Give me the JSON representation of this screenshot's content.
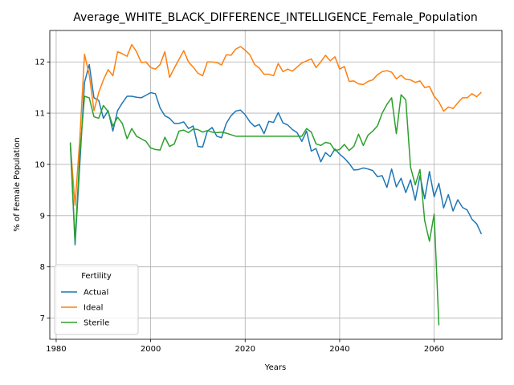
{
  "chart_data": {
    "type": "line",
    "title": "Average_WHITE_BLACK_DIFFERENCE_INTELLIGENCE_Female_Population",
    "xlabel": "Years",
    "ylabel": "% of Female Population",
    "legend_title": "Fertility",
    "legend": "lower left",
    "grid": true,
    "xlim": [
      1978.65,
      2074.35
    ],
    "xticks": [
      1980,
      2000,
      2020,
      2040,
      2060
    ],
    "ylim": [
      6.586,
      12.614
    ],
    "yticks": [
      7,
      8,
      9,
      10,
      11,
      12
    ],
    "x": [
      1983,
      1984,
      1985,
      1986,
      1987,
      1988,
      1989,
      1990,
      1991,
      1992,
      1993,
      1994,
      1995,
      1996,
      1997,
      1998,
      1999,
      2000,
      2001,
      2002,
      2003,
      2004,
      2005,
      2006,
      2007,
      2008,
      2009,
      2010,
      2011,
      2012,
      2013,
      2014,
      2015,
      2016,
      2017,
      2018,
      2019,
      2020,
      2021,
      2022,
      2023,
      2024,
      2025,
      2026,
      2027,
      2028,
      2029,
      2030,
      2031,
      2032,
      2033,
      2034,
      2035,
      2036,
      2037,
      2038,
      2039,
      2040,
      2041,
      2042,
      2043,
      2044,
      2045,
      2046,
      2047,
      2048,
      2049,
      2050,
      2051,
      2052,
      2053,
      2054,
      2055,
      2056,
      2057,
      2058,
      2059,
      2060,
      2061,
      2062,
      2063,
      2064,
      2065,
      2066,
      2067,
      2068,
      2069,
      2070
    ],
    "series": [
      {
        "name": "Actual",
        "color": "#1f77b4",
        "values": [
          10.4,
          8.43,
          10.0,
          11.6,
          11.95,
          11.3,
          11.25,
          10.9,
          11.05,
          10.65,
          11.05,
          11.2,
          11.33,
          11.33,
          11.31,
          11.3,
          11.35,
          11.4,
          11.38,
          11.1,
          10.95,
          10.9,
          10.8,
          10.8,
          10.83,
          10.7,
          10.75,
          10.35,
          10.34,
          10.65,
          10.72,
          10.55,
          10.52,
          10.8,
          10.95,
          11.04,
          11.06,
          10.97,
          10.83,
          10.74,
          10.78,
          10.6,
          10.84,
          10.82,
          11.01,
          10.81,
          10.77,
          10.68,
          10.62,
          10.45,
          10.65,
          10.26,
          10.31,
          10.05,
          10.23,
          10.15,
          10.3,
          10.2,
          10.12,
          10.02,
          9.89,
          9.9,
          9.93,
          9.91,
          9.88,
          9.76,
          9.78,
          9.55,
          9.91,
          9.56,
          9.73,
          9.45,
          9.7,
          9.3,
          9.78,
          9.33,
          9.86,
          9.37,
          9.63,
          9.15,
          9.41,
          9.09,
          9.31,
          9.16,
          9.11,
          8.93,
          8.84,
          8.64
        ]
      },
      {
        "name": "Ideal",
        "color": "#ff7f0e",
        "values": [
          10.4,
          9.2,
          10.5,
          12.15,
          11.75,
          11.05,
          11.4,
          11.65,
          11.85,
          11.73,
          12.2,
          12.16,
          12.11,
          12.34,
          12.2,
          11.99,
          12.0,
          11.89,
          11.86,
          11.95,
          12.2,
          11.7,
          11.88,
          12.05,
          12.22,
          12.0,
          11.9,
          11.78,
          11.73,
          12.0,
          12.0,
          11.99,
          11.94,
          12.14,
          12.13,
          12.25,
          12.3,
          12.23,
          12.14,
          11.95,
          11.88,
          11.76,
          11.76,
          11.73,
          11.97,
          11.81,
          11.86,
          11.82,
          11.9,
          11.98,
          12.02,
          12.06,
          11.89,
          12.0,
          12.13,
          12.02,
          12.1,
          11.86,
          11.91,
          11.62,
          11.63,
          11.57,
          11.56,
          11.62,
          11.65,
          11.75,
          11.81,
          11.83,
          11.8,
          11.67,
          11.74,
          11.66,
          11.65,
          11.6,
          11.63,
          11.5,
          11.52,
          11.33,
          11.22,
          11.04,
          11.12,
          11.09,
          11.2,
          11.3,
          11.3,
          11.38,
          11.32,
          11.41
        ]
      },
      {
        "name": "Sterile",
        "color": "#2ca02c",
        "values": [
          10.43,
          8.5,
          10.2,
          11.33,
          11.3,
          10.93,
          10.9,
          11.15,
          11.03,
          10.75,
          10.92,
          10.8,
          10.5,
          10.7,
          10.55,
          10.5,
          10.45,
          10.32,
          10.29,
          10.28,
          10.53,
          10.35,
          10.4,
          10.65,
          10.67,
          10.62,
          10.69,
          10.68,
          10.63,
          10.66,
          10.63,
          10.62,
          10.63,
          10.61,
          10.58,
          10.55,
          10.55,
          10.55,
          10.55,
          10.55,
          10.55,
          10.55,
          10.55,
          10.55,
          10.55,
          10.55,
          10.55,
          10.55,
          10.55,
          10.55,
          10.7,
          10.63,
          10.4,
          10.37,
          10.43,
          10.41,
          10.27,
          10.29,
          10.39,
          10.27,
          10.35,
          10.59,
          10.37,
          10.57,
          10.65,
          10.75,
          11.0,
          11.17,
          11.3,
          10.6,
          11.36,
          11.26,
          9.95,
          9.6,
          9.9,
          8.9,
          8.5,
          9.03,
          6.86,
          null,
          null,
          null,
          null,
          null,
          null,
          null,
          null,
          null
        ]
      }
    ]
  }
}
